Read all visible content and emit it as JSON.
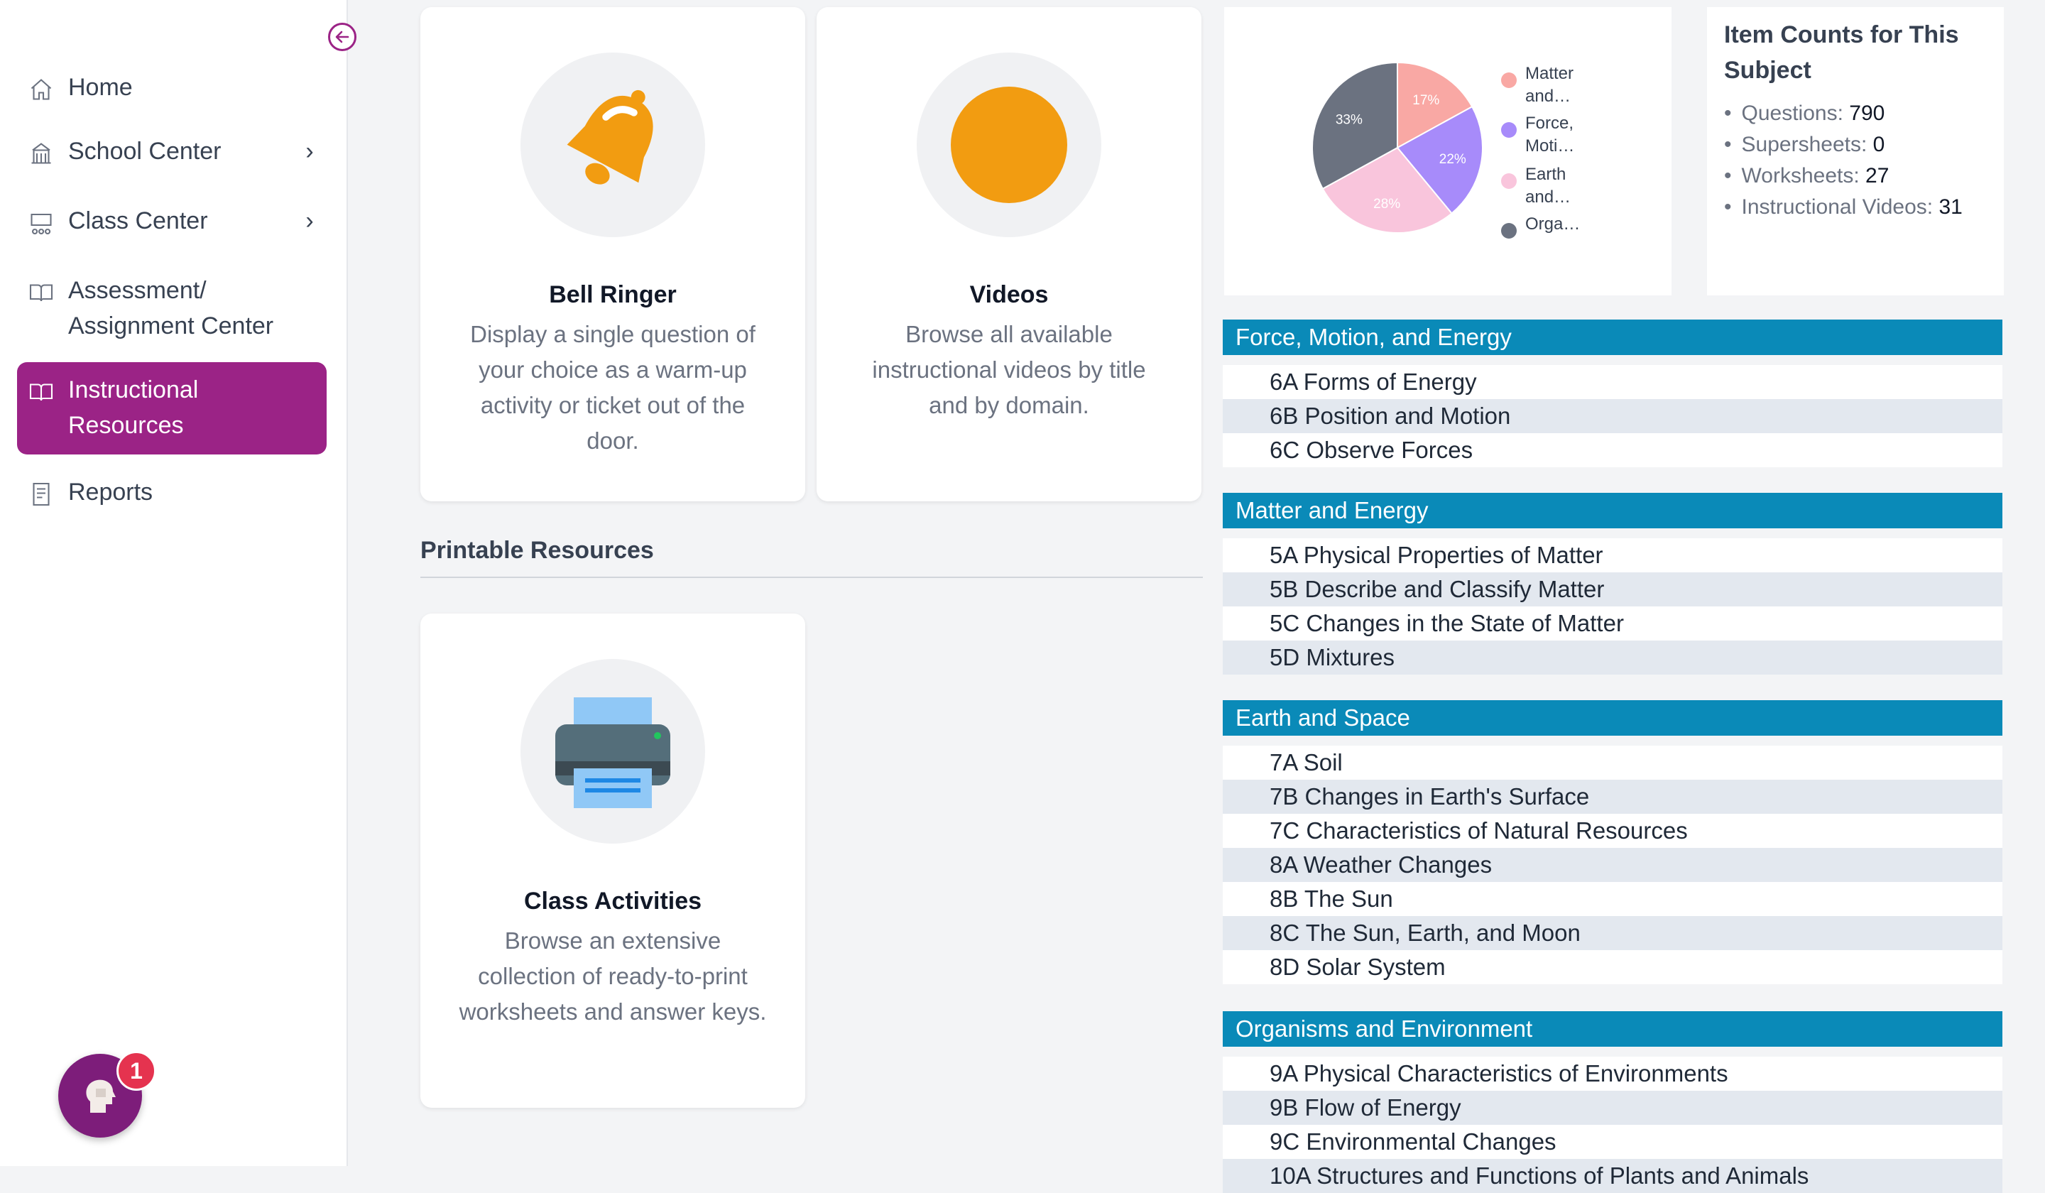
{
  "sidebar": {
    "collapse_icon": "arrow-left-circle-icon",
    "items": [
      {
        "label": "Home",
        "icon": "home-icon"
      },
      {
        "label": "School Center",
        "icon": "school-icon"
      },
      {
        "label": "Class Center",
        "icon": "classroom-icon"
      },
      {
        "label_line1": "Assessment/",
        "label_line2": "Assignment Center",
        "icon": "book-open-icon"
      },
      {
        "label_line1": "Instructional",
        "label_line2": "Resources",
        "icon": "book-open-icon"
      },
      {
        "label": "Reports",
        "icon": "report-icon"
      }
    ],
    "active_color": "#9b2386",
    "help": {
      "icon": "help-head-icon",
      "badge": "1"
    }
  },
  "cards": {
    "bell_ringer": {
      "title": "Bell Ringer",
      "description": "Display a single question of your choice as a warm-up activity or ticket out of the door.",
      "icon": "bell-icon"
    },
    "videos": {
      "title": "Videos",
      "description": "Browse all available instructional videos by title and by domain.",
      "icon": "orange-circle-icon"
    },
    "class_activities": {
      "title": "Class Activities",
      "description": "Browse an extensive collection of ready-to-print worksheets and answer keys.",
      "icon": "printer-icon"
    }
  },
  "printable_section": {
    "title": "Printable Resources"
  },
  "chart_data": {
    "type": "pie",
    "slices": [
      {
        "label": "Matter and…",
        "value": 17,
        "color": "#f9a8a4"
      },
      {
        "label": "Force, Moti…",
        "value": 22,
        "color": "#a78bfa"
      },
      {
        "label": "Earth and…",
        "value": 28,
        "color": "#f9c5dc"
      },
      {
        "label": "Orga…",
        "value": 33,
        "color": "#6b7280"
      }
    ],
    "slice_labels": [
      "17%",
      "22%",
      "28%",
      "33%"
    ],
    "legend_position": "right"
  },
  "item_counts": {
    "title": "Item Counts for This Subject",
    "items": [
      {
        "label": "Questions:",
        "value": "790"
      },
      {
        "label": "Supersheets:",
        "value": "0"
      },
      {
        "label": "Worksheets:",
        "value": "27"
      },
      {
        "label": "Instructional Videos:",
        "value": "31"
      }
    ]
  },
  "domains": [
    {
      "title": "Force, Motion, and Energy",
      "standards": [
        "6A Forms of Energy",
        "6B Position and Motion",
        "6C Observe Forces"
      ]
    },
    {
      "title": "Matter and Energy",
      "standards": [
        "5A Physical Properties of Matter",
        "5B Describe and Classify Matter",
        "5C Changes in the State of Matter",
        "5D Mixtures"
      ]
    },
    {
      "title": "Earth and Space",
      "standards": [
        "7A Soil",
        "7B Changes in Earth's Surface",
        "7C Characteristics of Natural Resources",
        "8A Weather Changes",
        "8B The Sun",
        "8C The Sun, Earth, and Moon",
        "8D Solar System"
      ]
    },
    {
      "title": "Organisms and Environment",
      "standards": [
        "9A Physical Characteristics of Environments",
        "9B Flow of Energy",
        "9C Environmental Changes",
        "10A Structures and Functions of Plants and Animals"
      ]
    }
  ],
  "colors": {
    "domain_header": "#0a8ab8",
    "accent": "#9b2386"
  }
}
